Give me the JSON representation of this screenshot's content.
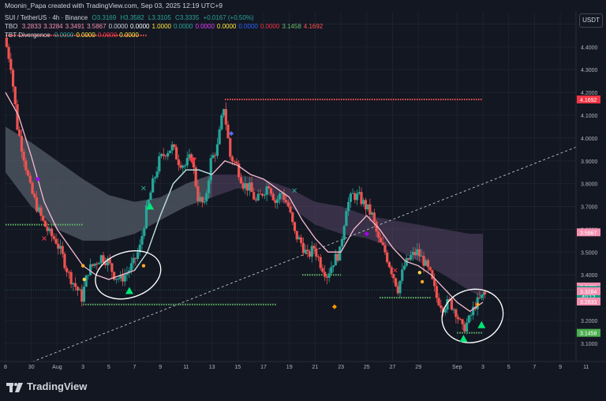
{
  "header": {
    "author_line": "Moonin_Papa created with TradingView.com, Sep 03, 2025 12:19 UTC+9"
  },
  "legend": {
    "symbol_line": {
      "symbol": "SUI / TetherUS · 4h · Binance",
      "open": "O3.3169",
      "high": "H3.3582",
      "low": "L3.3105",
      "close": "C3.3335",
      "change": "+0.0167 (+0.50%)"
    },
    "tbo_line": {
      "name": "TBO",
      "values": [
        {
          "text": "3.2833",
          "color": "#f48fb1"
        },
        {
          "text": "3.3284",
          "color": "#f48fb1"
        },
        {
          "text": "3.3491",
          "color": "#f48fb1"
        },
        {
          "text": "3.5867",
          "color": "#f48fb1"
        },
        {
          "text": "0.0000",
          "color": "#d1d4dc"
        },
        {
          "text": "0.0000",
          "color": "#ffffff"
        },
        {
          "text": "1.0000",
          "color": "#ffeb3b"
        },
        {
          "text": "0.0000",
          "color": "#26a69a"
        },
        {
          "text": "0.0000",
          "color": "#e040fb"
        },
        {
          "text": "0.0000",
          "color": "#ffeb3b"
        },
        {
          "text": "0.0000",
          "color": "#2962ff"
        },
        {
          "text": "0.0000",
          "color": "#f23645"
        },
        {
          "text": "3.1458",
          "color": "#66bb6a"
        },
        {
          "text": "4.1692",
          "color": "#ff5252"
        }
      ]
    },
    "tbt_line": {
      "name": "TBT Divergence",
      "values": [
        {
          "text": "0.0000",
          "color": "#26a69a"
        },
        {
          "text": "0.0000",
          "color": "#ffeb3b"
        },
        {
          "text": "0.0000",
          "color": "#f23645"
        },
        {
          "text": "0.0000",
          "color": "#ffeb3b"
        }
      ]
    }
  },
  "currency": "USDT",
  "brand": "TradingView",
  "chart_data": {
    "type": "candlestick",
    "title": "SUI / TetherUS · 4h · Binance",
    "ylim": [
      3.02,
      4.55
    ],
    "y_ticks": [
      "4.5000",
      "4.4000",
      "4.3000",
      "4.2000",
      "4.1000",
      "4.0000",
      "3.9000",
      "3.8000",
      "3.7000",
      "3.6000",
      "3.5000",
      "3.4000",
      "3.3000",
      "3.2000",
      "3.1000",
      "3.0000"
    ],
    "y_tick_values": [
      4.5,
      4.4,
      4.3,
      4.2,
      4.1,
      4.0,
      3.9,
      3.8,
      3.7,
      3.6,
      3.5,
      3.4,
      3.3,
      3.2,
      3.1,
      3.0
    ],
    "x_ticks": [
      {
        "label": "8",
        "day": 0
      },
      {
        "label": "30",
        "day": 2
      },
      {
        "label": "Aug",
        "day": 4
      },
      {
        "label": "3",
        "day": 6
      },
      {
        "label": "5",
        "day": 8
      },
      {
        "label": "7",
        "day": 10
      },
      {
        "label": "9",
        "day": 12
      },
      {
        "label": "11",
        "day": 14
      },
      {
        "label": "13",
        "day": 16
      },
      {
        "label": "15",
        "day": 18
      },
      {
        "label": "17",
        "day": 20
      },
      {
        "label": "19",
        "day": 22
      },
      {
        "label": "21",
        "day": 24
      },
      {
        "label": "23",
        "day": 26
      },
      {
        "label": "25",
        "day": 28
      },
      {
        "label": "27",
        "day": 30
      },
      {
        "label": "29",
        "day": 32
      },
      {
        "label": "Sep",
        "day": 35
      },
      {
        "label": "3",
        "day": 37
      },
      {
        "label": "5",
        "day": 39
      },
      {
        "label": "7",
        "day": 41
      },
      {
        "label": "9",
        "day": 43
      },
      {
        "label": "11",
        "day": 45
      },
      {
        "label": "1",
        "day": 47
      }
    ],
    "last_day": 37.2,
    "price_path": [
      [
        0,
        4.44
      ],
      [
        0.5,
        4.32
      ],
      [
        1,
        4.05
      ],
      [
        1.5,
        3.92
      ],
      [
        2,
        3.78
      ],
      [
        2.5,
        3.7
      ],
      [
        3,
        3.63
      ],
      [
        3.5,
        3.58
      ],
      [
        4,
        3.55
      ],
      [
        4.5,
        3.48
      ],
      [
        5,
        3.4
      ],
      [
        5.5,
        3.35
      ],
      [
        6,
        3.3
      ],
      [
        6.5,
        3.42
      ],
      [
        7,
        3.45
      ],
      [
        7.5,
        3.48
      ],
      [
        8,
        3.46
      ],
      [
        8.5,
        3.4
      ],
      [
        9,
        3.38
      ],
      [
        9.5,
        3.41
      ],
      [
        10,
        3.45
      ],
      [
        10.5,
        3.52
      ],
      [
        11,
        3.68
      ],
      [
        11.5,
        3.8
      ],
      [
        12,
        3.9
      ],
      [
        12.5,
        3.94
      ],
      [
        13,
        3.96
      ],
      [
        13.5,
        3.9
      ],
      [
        14,
        3.88
      ],
      [
        14.5,
        3.92
      ],
      [
        15,
        3.74
      ],
      [
        15.5,
        3.7
      ],
      [
        16,
        3.9
      ],
      [
        16.5,
        3.96
      ],
      [
        17,
        4.14
      ],
      [
        17.5,
        3.92
      ],
      [
        18,
        3.88
      ],
      [
        18.5,
        3.8
      ],
      [
        19,
        3.78
      ],
      [
        19.5,
        3.72
      ],
      [
        20,
        3.76
      ],
      [
        20.5,
        3.8
      ],
      [
        21,
        3.72
      ],
      [
        21.5,
        3.76
      ],
      [
        22,
        3.7
      ],
      [
        22.5,
        3.58
      ],
      [
        23,
        3.54
      ],
      [
        23.5,
        3.48
      ],
      [
        24,
        3.52
      ],
      [
        24.5,
        3.45
      ],
      [
        25,
        3.4
      ],
      [
        25.5,
        3.46
      ],
      [
        26,
        3.5
      ],
      [
        26.5,
        3.7
      ],
      [
        27,
        3.75
      ],
      [
        27.5,
        3.74
      ],
      [
        28,
        3.7
      ],
      [
        28.5,
        3.66
      ],
      [
        29,
        3.55
      ],
      [
        29.5,
        3.5
      ],
      [
        30,
        3.42
      ],
      [
        30.5,
        3.34
      ],
      [
        31,
        3.44
      ],
      [
        31.5,
        3.48
      ],
      [
        32,
        3.5
      ],
      [
        32.5,
        3.46
      ],
      [
        33,
        3.4
      ],
      [
        33.5,
        3.3
      ],
      [
        34,
        3.26
      ],
      [
        34.5,
        3.28
      ],
      [
        35,
        3.24
      ],
      [
        35.5,
        3.16
      ],
      [
        36,
        3.2
      ],
      [
        36.5,
        3.27
      ],
      [
        37,
        3.3
      ],
      [
        37.2,
        3.3335
      ]
    ],
    "series": [
      {
        "name": "SUI / TetherUS",
        "close": 3.3335
      },
      {
        "name": "TBO",
        "values": [
          3.2833,
          3.3284,
          3.3491,
          3.5867,
          3.1458,
          4.1692
        ]
      }
    ],
    "tbo_fast_line": [
      [
        0,
        4.2
      ],
      [
        1,
        4.1
      ],
      [
        2,
        3.92
      ],
      [
        3,
        3.72
      ],
      [
        4,
        3.6
      ],
      [
        5,
        3.52
      ],
      [
        6,
        3.44
      ],
      [
        7,
        3.4
      ],
      [
        8,
        3.38
      ],
      [
        9,
        3.4
      ],
      [
        10,
        3.42
      ],
      [
        11,
        3.5
      ],
      [
        12,
        3.66
      ],
      [
        13,
        3.8
      ],
      [
        14,
        3.86
      ],
      [
        15,
        3.86
      ],
      [
        16,
        3.84
      ],
      [
        17,
        3.9
      ],
      [
        18,
        3.88
      ],
      [
        19,
        3.84
      ],
      [
        20,
        3.82
      ],
      [
        21,
        3.78
      ],
      [
        22,
        3.74
      ],
      [
        23,
        3.64
      ],
      [
        24,
        3.56
      ],
      [
        25,
        3.5
      ],
      [
        26,
        3.5
      ],
      [
        27,
        3.6
      ],
      [
        28,
        3.66
      ],
      [
        29,
        3.6
      ],
      [
        30,
        3.52
      ],
      [
        31,
        3.46
      ],
      [
        32,
        3.44
      ],
      [
        33,
        3.4
      ],
      [
        34,
        3.34
      ],
      [
        35,
        3.28
      ],
      [
        36,
        3.24
      ],
      [
        37,
        3.28
      ]
    ],
    "tbo_cloud": [
      {
        "day": 0,
        "top": 4.05,
        "bottom": 3.85
      },
      {
        "day": 2,
        "top": 3.98,
        "bottom": 3.7
      },
      {
        "day": 4,
        "top": 3.9,
        "bottom": 3.6
      },
      {
        "day": 6,
        "top": 3.82,
        "bottom": 3.55
      },
      {
        "day": 8,
        "top": 3.75,
        "bottom": 3.55
      },
      {
        "day": 10,
        "top": 3.72,
        "bottom": 3.58
      },
      {
        "day": 12,
        "top": 3.74,
        "bottom": 3.64
      },
      {
        "day": 14,
        "top": 3.8,
        "bottom": 3.7
      },
      {
        "day": 16,
        "top": 3.84,
        "bottom": 3.74
      },
      {
        "day": 18,
        "top": 3.84,
        "bottom": 3.78
      },
      {
        "day": 20,
        "top": 3.82,
        "bottom": 3.76
      },
      {
        "day": 22,
        "top": 3.78,
        "bottom": 3.7
      },
      {
        "day": 24,
        "top": 3.72,
        "bottom": 3.62
      },
      {
        "day": 26,
        "top": 3.7,
        "bottom": 3.58
      },
      {
        "day": 28,
        "top": 3.66,
        "bottom": 3.56
      },
      {
        "day": 30,
        "top": 3.64,
        "bottom": 3.52
      },
      {
        "day": 32,
        "top": 3.62,
        "bottom": 3.46
      },
      {
        "day": 34,
        "top": 3.6,
        "bottom": 3.4
      },
      {
        "day": 36,
        "top": 3.58,
        "bottom": 3.33
      },
      {
        "day": 37,
        "top": 3.58,
        "bottom": 3.3
      }
    ],
    "levels": [
      {
        "color": "#ff5252",
        "price": 4.45,
        "from": 0,
        "to": 11
      },
      {
        "color": "#ff5252",
        "price": 4.1692,
        "from": 17,
        "to": 37
      },
      {
        "color": "#66bb6a",
        "price": 3.62,
        "from": 0,
        "to": 6
      },
      {
        "color": "#66bb6a",
        "price": 3.27,
        "from": 6,
        "to": 21
      },
      {
        "color": "#66bb6a",
        "price": 3.4,
        "from": 23,
        "to": 26
      },
      {
        "color": "#66bb6a",
        "price": 3.3,
        "from": 29,
        "to": 33
      },
      {
        "color": "#66bb6a",
        "price": 3.1458,
        "from": 35,
        "to": 37
      }
    ],
    "trend_line": {
      "from": [
        -1,
        2.95
      ],
      "to": [
        46,
        4.0
      ]
    },
    "current_line": 3.3335,
    "price_labels": [
      {
        "text": "4.1692",
        "price": 4.1692,
        "color": "#f23645"
      },
      {
        "text": "3.5867",
        "price": 3.5867,
        "color": "#f48fb1"
      },
      {
        "text": "3.3491",
        "price": 3.3491,
        "color": "#f48fb1"
      },
      {
        "text": "3.3335",
        "price": 3.3335,
        "color": "#089981",
        "sub": "40:12"
      },
      {
        "text": "3.3284",
        "price": 3.3284,
        "color": "#f48fb1"
      },
      {
        "text": "3.2833",
        "price": 3.2833,
        "color": "#f48fb1"
      },
      {
        "text": "3.1458",
        "price": 3.1458,
        "color": "#4caf50"
      }
    ],
    "annotations": [
      {
        "type": "ellipse",
        "center_day": 9.5,
        "center_price": 3.4,
        "rx_days": 2.6,
        "ry_price": 0.1
      },
      {
        "type": "ellipse",
        "center_day": 36.2,
        "center_price": 3.22,
        "rx_days": 2.4,
        "ry_price": 0.115
      }
    ],
    "markers": [
      {
        "shape": "triangle-up",
        "day": 9.6,
        "price": 3.33,
        "color": "#00e676"
      },
      {
        "shape": "triangle-up",
        "day": 11.2,
        "price": 3.7,
        "color": "#00e676"
      },
      {
        "shape": "triangle-up",
        "day": 35.5,
        "price": 3.12,
        "color": "#00e676"
      },
      {
        "shape": "triangle-up",
        "day": 36.9,
        "price": 3.18,
        "color": "#00e676"
      },
      {
        "shape": "triangle-down",
        "day": 14.5,
        "price": 3.9,
        "color": "#f23645"
      },
      {
        "shape": "cross",
        "day": 3,
        "price": 3.56,
        "color": "#f23645"
      },
      {
        "shape": "cross",
        "day": 10.7,
        "price": 3.78,
        "color": "#26a69a"
      },
      {
        "shape": "cross",
        "day": 22.4,
        "price": 3.77,
        "color": "#26a69a"
      },
      {
        "shape": "cross",
        "day": 30.2,
        "price": 3.42,
        "color": "#f23645"
      },
      {
        "shape": "dot",
        "day": 6,
        "price": 3.44,
        "color": "#ffa726"
      },
      {
        "shape": "dot",
        "day": 6.1,
        "price": 3.38,
        "color": "#ffd54f"
      },
      {
        "shape": "dot",
        "day": 10.7,
        "price": 3.44,
        "color": "#ffa726"
      },
      {
        "shape": "dot",
        "day": 32.1,
        "price": 3.41,
        "color": "#ffd54f"
      },
      {
        "shape": "dot",
        "day": 32.3,
        "price": 3.37,
        "color": "#ffa726"
      },
      {
        "shape": "dot",
        "day": 36.6,
        "price": 3.27,
        "color": "#ffa726"
      },
      {
        "shape": "diamond",
        "day": 25.5,
        "price": 3.26,
        "color": "#ff9800"
      },
      {
        "shape": "diamond",
        "day": 17.5,
        "price": 4.02,
        "color": "#536dfe"
      },
      {
        "shape": "diamond",
        "day": 2.5,
        "price": 3.82,
        "color": "#aa00ff"
      },
      {
        "shape": "diamond",
        "day": 28,
        "price": 3.58,
        "color": "#aa00ff"
      }
    ]
  }
}
